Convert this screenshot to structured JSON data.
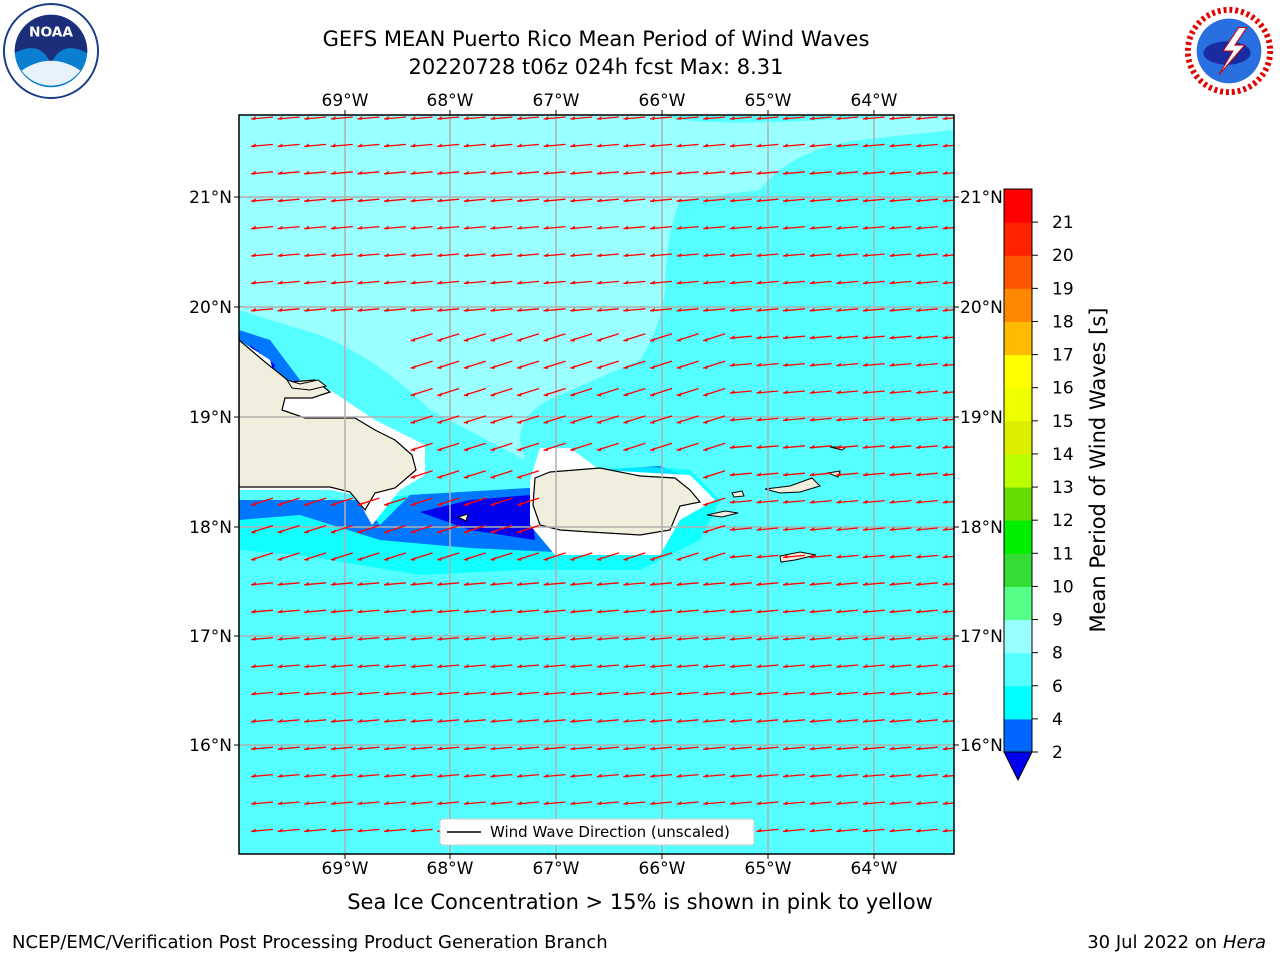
{
  "title_line1": "GEFS MEAN Puerto Rico Mean Period of Wind Waves",
  "title_line2": "20220728 t06z 024h fcst   Max: 8.31",
  "logos": {
    "left": "noaa-logo",
    "right": "nws-logo"
  },
  "lon_labels": [
    "69°W",
    "68°W",
    "67°W",
    "66°W",
    "65°W",
    "64°W"
  ],
  "lat_labels": [
    "21°N",
    "20°N",
    "19°N",
    "18°N",
    "17°N",
    "16°N"
  ],
  "legend_label": "Wind Wave Direction (unscaled)",
  "colorbar": {
    "label": "Mean Period of Wind Waves [s]",
    "ticks": [
      "2",
      "4",
      "6",
      "8",
      "9",
      "10",
      "11",
      "12",
      "13",
      "14",
      "15",
      "16",
      "17",
      "18",
      "19",
      "20",
      "21"
    ],
    "colors": [
      "#0000ee",
      "#0066ff",
      "#00ffff",
      "#55ffff",
      "#99ffff",
      "#55ff88",
      "#33dd33",
      "#00ee00",
      "#66dd00",
      "#bbff00",
      "#ddee00",
      "#eeff00",
      "#ffff00",
      "#ffbb00",
      "#ff8800",
      "#ff5500",
      "#ff2200",
      "#ff0000"
    ]
  },
  "colors": {
    "ocean": "#55ffff",
    "ocean_light": "#99ffff",
    "land": "#f0eedd",
    "arrow": "#ff0000",
    "grid": "#b0b0b0"
  },
  "bottom_note": "Sea Ice Concentration > 15% is shown in pink to yellow",
  "credit": "NCEP/EMC/Verification Post Processing Product Generation Branch",
  "date_text": "30 Jul 2022 on ",
  "date_host": "Hera"
}
